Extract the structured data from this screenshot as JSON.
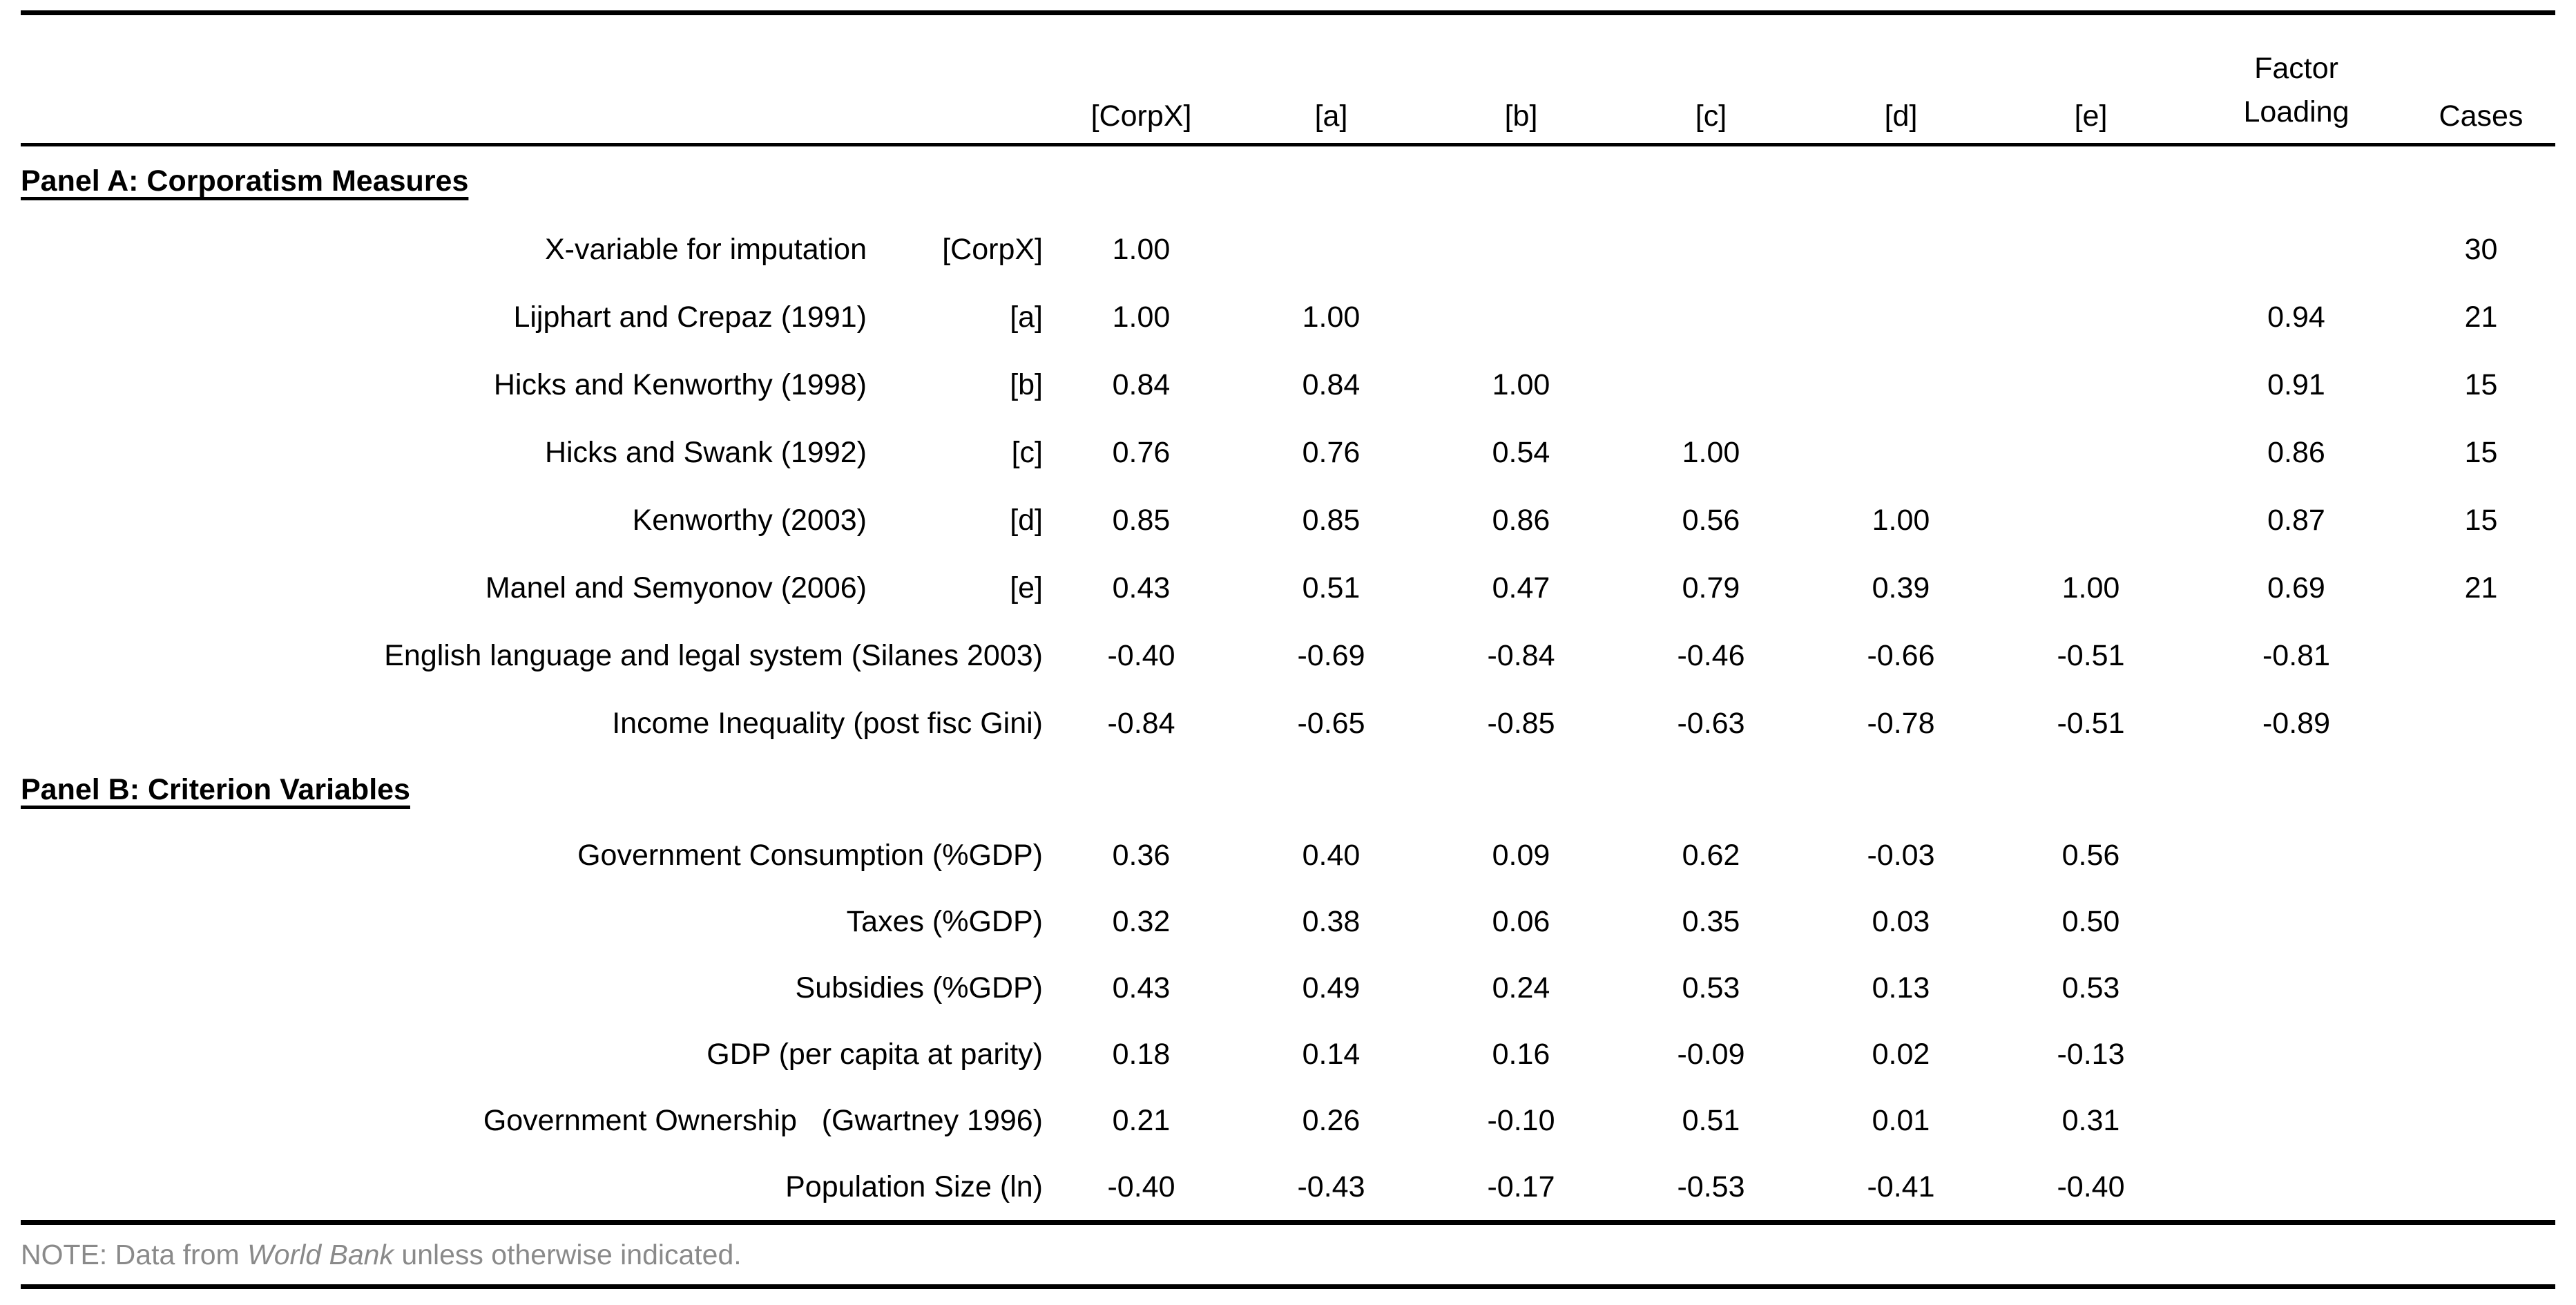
{
  "table": {
    "header": {
      "columns": [
        "[CorpX]",
        "[a]",
        "[b]",
        "[c]",
        "[d]",
        "[e]"
      ],
      "factor_line1": "Factor",
      "factor_line2": "Loading",
      "cases": "Cases"
    },
    "panel_a": {
      "title": "Panel A: Corporatism Measures",
      "rows": [
        {
          "label": "X-variable for imputation",
          "tag": "[CorpX]",
          "values": [
            "1.00",
            "",
            "",
            "",
            "",
            ""
          ],
          "factor_loading": "",
          "cases": "30"
        },
        {
          "label": "Lijphart and Crepaz (1991)",
          "tag": "[a]",
          "values": [
            "1.00",
            "1.00",
            "",
            "",
            "",
            ""
          ],
          "factor_loading": "0.94",
          "cases": "21"
        },
        {
          "label": "Hicks and Kenworthy (1998)",
          "tag": "[b]",
          "values": [
            "0.84",
            "0.84",
            "1.00",
            "",
            "",
            ""
          ],
          "factor_loading": "0.91",
          "cases": "15"
        },
        {
          "label": "Hicks and Swank (1992)",
          "tag": "[c]",
          "values": [
            "0.76",
            "0.76",
            "0.54",
            "1.00",
            "",
            ""
          ],
          "factor_loading": "0.86",
          "cases": "15"
        },
        {
          "label": "Kenworthy (2003)",
          "tag": "[d]",
          "values": [
            "0.85",
            "0.85",
            "0.86",
            "0.56",
            "1.00",
            ""
          ],
          "factor_loading": "0.87",
          "cases": "15"
        },
        {
          "label": "Manel and Semyonov (2006)",
          "tag": "[e]",
          "values": [
            "0.43",
            "0.51",
            "0.47",
            "0.79",
            "0.39",
            "1.00"
          ],
          "factor_loading": "0.69",
          "cases": "21"
        },
        {
          "label": "English language and legal system (Silanes 2003)",
          "tag": "",
          "values": [
            "-0.40",
            "-0.69",
            "-0.84",
            "-0.46",
            "-0.66",
            "-0.51"
          ],
          "factor_loading": "-0.81",
          "cases": ""
        },
        {
          "label": "Income Inequality (post fisc Gini)",
          "tag": "",
          "values": [
            "-0.84",
            "-0.65",
            "-0.85",
            "-0.63",
            "-0.78",
            "-0.51"
          ],
          "factor_loading": "-0.89",
          "cases": ""
        }
      ]
    },
    "panel_b": {
      "title": "Panel B: Criterion Variables",
      "rows": [
        {
          "label": "Government Consumption (%GDP)",
          "tag": "",
          "values": [
            "0.36",
            "0.40",
            "0.09",
            "0.62",
            "-0.03",
            "0.56"
          ],
          "factor_loading": "",
          "cases": ""
        },
        {
          "label": "Taxes (%GDP)",
          "tag": "",
          "values": [
            "0.32",
            "0.38",
            "0.06",
            "0.35",
            "0.03",
            "0.50"
          ],
          "factor_loading": "",
          "cases": ""
        },
        {
          "label": "Subsidies (%GDP)",
          "tag": "",
          "values": [
            "0.43",
            "0.49",
            "0.24",
            "0.53",
            "0.13",
            "0.53"
          ],
          "factor_loading": "",
          "cases": ""
        },
        {
          "label": "GDP (per capita at parity)",
          "tag": "",
          "values": [
            "0.18",
            "0.14",
            "0.16",
            "-0.09",
            "0.02",
            "-0.13"
          ],
          "factor_loading": "",
          "cases": ""
        },
        {
          "label": "Government Ownership   (Gwartney 1996)",
          "tag": "",
          "values": [
            "0.21",
            "0.26",
            "-0.10",
            "0.51",
            "0.01",
            "0.31"
          ],
          "factor_loading": "",
          "cases": ""
        },
        {
          "label": "Population Size (ln)",
          "tag": "",
          "values": [
            "-0.40",
            "-0.43",
            "-0.17",
            "-0.53",
            "-0.41",
            "-0.40"
          ],
          "factor_loading": "",
          "cases": ""
        }
      ]
    },
    "note": {
      "prefix": "NOTE: Data from ",
      "source": "World Bank",
      "suffix": " unless otherwise indicated."
    }
  }
}
